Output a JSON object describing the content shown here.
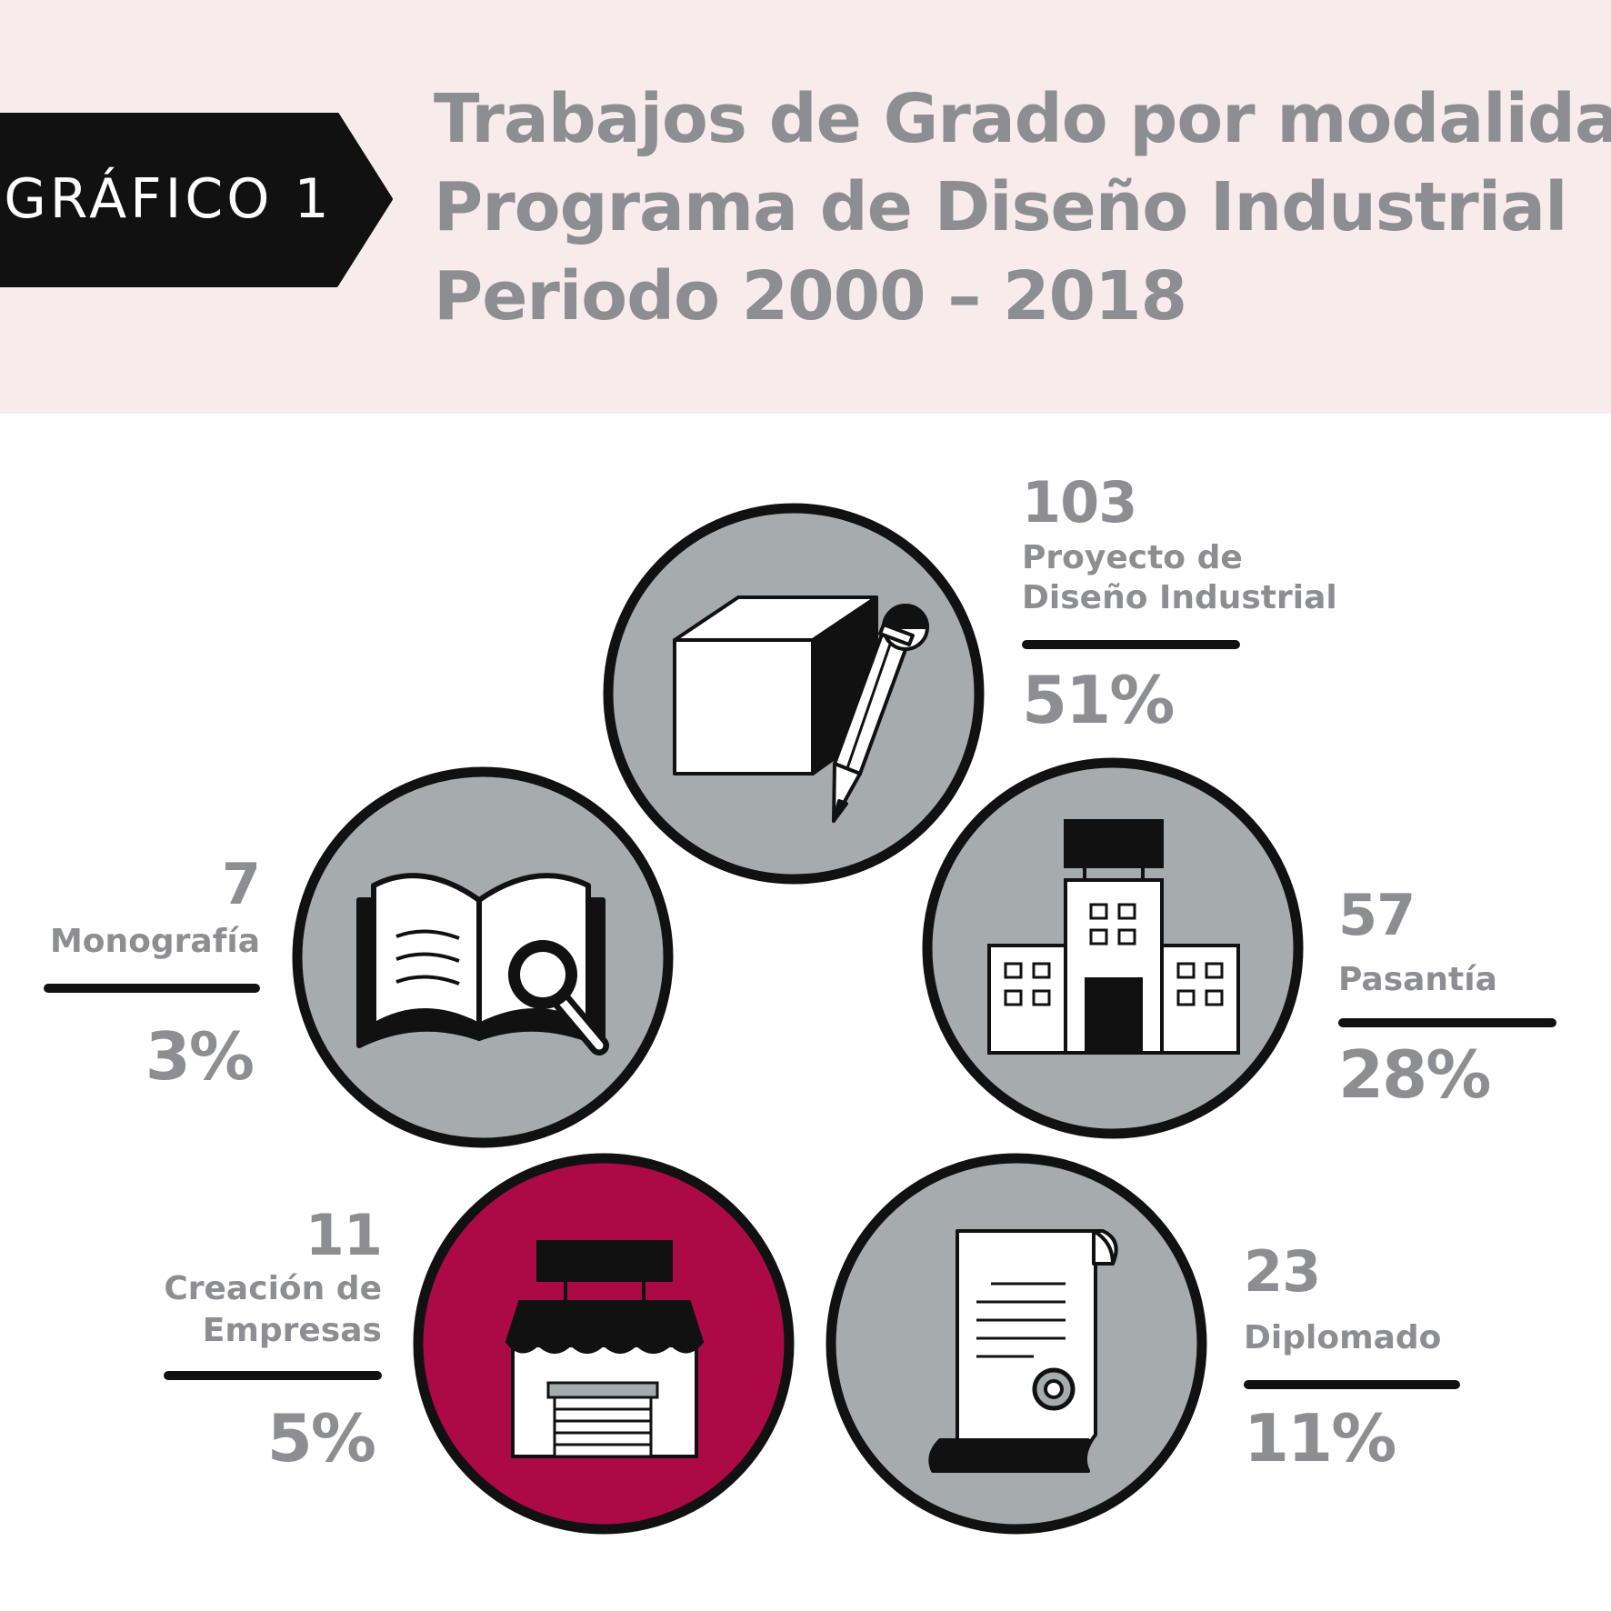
{
  "header": {
    "tag": "GRÁFICO 1",
    "title_lines": [
      "Trabajos de Grado por modalidad",
      "Programa de Diseño Industrial",
      "Periodo 2000 – 2018"
    ]
  },
  "colors": {
    "circle": "#a6abae",
    "highlight": "#ab0a47",
    "text": "#8c8e91",
    "header_bg": "#f7ebeb"
  },
  "chart_data": {
    "type": "pictogram",
    "title": "Trabajos de Grado por modalidad",
    "categories": [
      "Proyecto de Diseño Industrial",
      "Pasantía",
      "Diplomado",
      "Creación de Empresas",
      "Monografía"
    ],
    "series": [
      {
        "values": [
          103,
          57,
          23,
          11,
          7
        ]
      }
    ],
    "percentages": [
      "51%",
      "28%",
      "11%",
      "5%",
      "3%"
    ],
    "items": [
      {
        "count": "103",
        "label_lines": [
          "Proyecto de",
          "Diseño Industrial"
        ],
        "percent": "51%",
        "icon": "cube-pencil-icon",
        "highlight": false
      },
      {
        "count": "57",
        "label_lines": [
          "Pasantía"
        ],
        "percent": "28%",
        "icon": "building-icon",
        "highlight": false
      },
      {
        "count": "23",
        "label_lines": [
          "Diplomado"
        ],
        "percent": "11%",
        "icon": "diploma-icon",
        "highlight": false
      },
      {
        "count": "11",
        "label_lines": [
          "Creación de",
          "Empresas"
        ],
        "percent": "5%",
        "icon": "store-icon",
        "highlight": true
      },
      {
        "count": "7",
        "label_lines": [
          "Monografía"
        ],
        "percent": "3%",
        "icon": "book-search-icon",
        "highlight": false
      }
    ]
  }
}
